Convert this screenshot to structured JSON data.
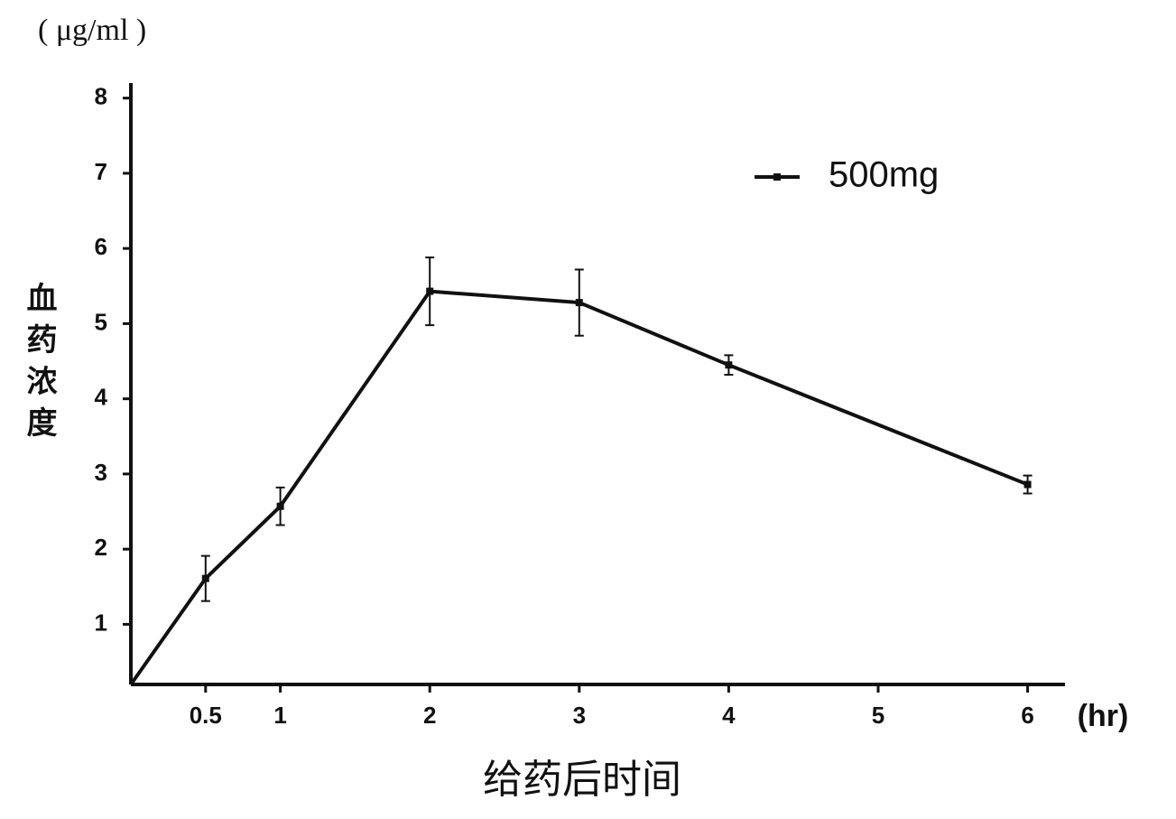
{
  "chart_data": {
    "type": "line",
    "y_unit": "( μg/ml )",
    "y_label": "血药浓度",
    "x_label": "给药后时间",
    "x_unit": "(hr)",
    "x": [
      0,
      0.5,
      1,
      2,
      3,
      4,
      6
    ],
    "series": [
      {
        "name": "500mg",
        "color": "#111111",
        "values": [
          0.2,
          1.61,
          2.57,
          5.43,
          5.28,
          4.45,
          2.86
        ],
        "errors": [
          null,
          0.3,
          0.25,
          0.45,
          0.44,
          0.13,
          0.12
        ]
      }
    ],
    "xlim": [
      0,
      6.25
    ],
    "xticks": [
      0.5,
      1,
      2,
      3,
      4,
      5,
      6
    ],
    "ylim": [
      0.2,
      8.2
    ],
    "yticks": [
      1,
      2,
      3,
      4,
      5,
      6,
      7,
      8
    ],
    "grid": false,
    "legend": "upper right"
  }
}
